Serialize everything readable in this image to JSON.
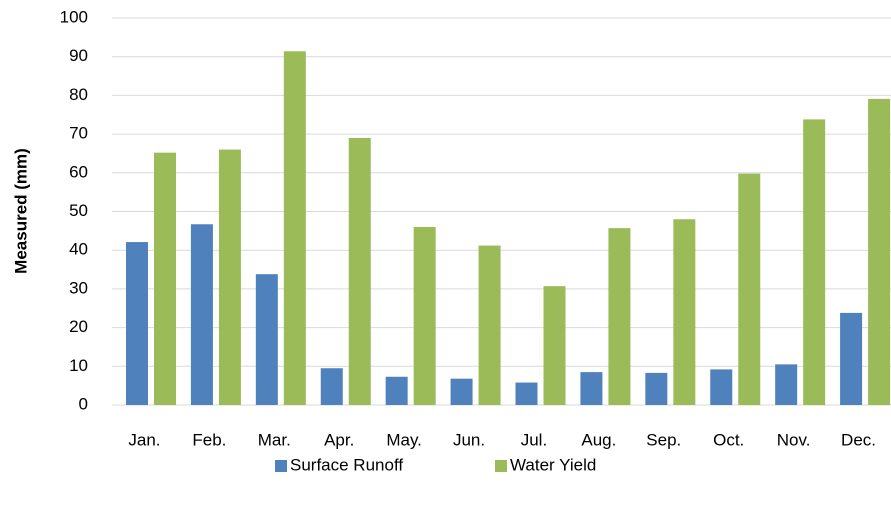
{
  "chart_data": {
    "type": "bar",
    "y_label": "Measured (mm)",
    "categories": [
      "Jan.",
      "Feb.",
      "Mar.",
      "Apr.",
      "May.",
      "Jun.",
      "Jul.",
      "Aug.",
      "Sep.",
      "Oct.",
      "Nov.",
      "Dec."
    ],
    "series": [
      {
        "name": "Surface Runoff",
        "color": "#4f81bd",
        "values": [
          42.1,
          46.7,
          33.8,
          9.5,
          7.3,
          6.8,
          5.8,
          8.5,
          8.3,
          9.2,
          10.5,
          23.8
        ]
      },
      {
        "name": "Water Yield",
        "color": "#9bbb59",
        "values": [
          65.2,
          66.0,
          91.4,
          69.0,
          46.0,
          41.2,
          30.7,
          45.7,
          48.0,
          59.8,
          73.8,
          79.1
        ]
      }
    ],
    "ylim": [
      0,
      100
    ],
    "yticks": [
      0,
      10,
      20,
      30,
      40,
      50,
      60,
      70,
      80,
      90,
      100
    ],
    "grid": true,
    "legend": "bottom"
  }
}
